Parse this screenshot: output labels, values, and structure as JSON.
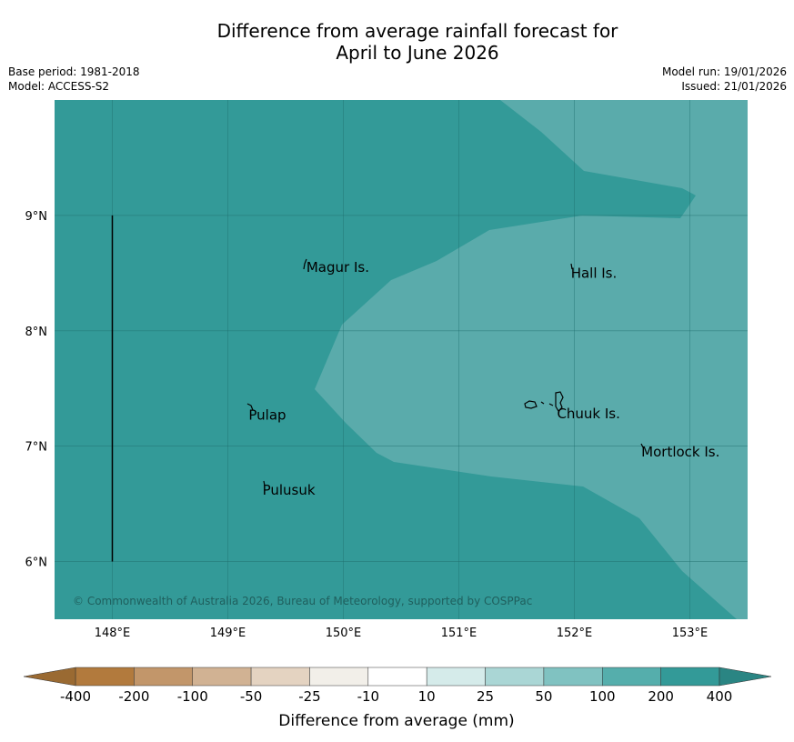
{
  "title": {
    "line1": "Difference from average rainfall forecast for",
    "line2": "April to June 2026"
  },
  "meta": {
    "base_period": "Base period: 1981-2018",
    "model": "Model: ACCESS-S2",
    "model_run": "Model run: 19/01/2026",
    "issued": "Issued: 21/01/2026"
  },
  "map": {
    "lon_range": [
      147.5,
      153.5
    ],
    "lat_range": [
      5.5,
      10.0
    ],
    "lon_ticks": [
      {
        "value": 148,
        "label": "148°E"
      },
      {
        "value": 149,
        "label": "149°E"
      },
      {
        "value": 150,
        "label": "150°E"
      },
      {
        "value": 151,
        "label": "151°E"
      },
      {
        "value": 152,
        "label": "152°E"
      },
      {
        "value": 153,
        "label": "153°E"
      }
    ],
    "lat_ticks": [
      {
        "value": 6,
        "label": "6°N"
      },
      {
        "value": 7,
        "label": "7°N"
      },
      {
        "value": 8,
        "label": "8°N"
      },
      {
        "value": 9,
        "label": "9°N"
      }
    ],
    "fill_colors": {
      "band_200_400": "#339a98",
      "band_100_200": "#5aabab",
      "gridline": "#1f6f6d",
      "land": "#000000"
    },
    "places": [
      {
        "name": "Magur Is.",
        "lon": 149.68,
        "lat": 8.55
      },
      {
        "name": "Hall Is.",
        "lon": 151.97,
        "lat": 8.5
      },
      {
        "name": "Pulap",
        "lon": 149.18,
        "lat": 7.27
      },
      {
        "name": "Chuuk Is.",
        "lon": 151.85,
        "lat": 7.28
      },
      {
        "name": "Mortlock Is.",
        "lon": 152.58,
        "lat": 6.95
      },
      {
        "name": "Pulusuk",
        "lon": 149.3,
        "lat": 6.62
      }
    ],
    "boundary_line": {
      "lon": 148.0,
      "lat_from": 6.0,
      "lat_to": 9.0
    },
    "credit": "© Commonwealth of Australia 2026, Bureau of Meteorology, supported by COSPPac"
  },
  "colorbar": {
    "title": "Difference from average (mm)",
    "ticks": [
      "-400",
      "-200",
      "-100",
      "-50",
      "-25",
      "-10",
      "10",
      "25",
      "50",
      "100",
      "200",
      "400"
    ],
    "colors": [
      "#b27a3d",
      "#c2966a",
      "#d1b293",
      "#e4d3c1",
      "#f2efe9",
      "#ffffff",
      "#d5ebea",
      "#aad6d5",
      "#80c2c1",
      "#55aeac",
      "#339a98"
    ],
    "under_color": "#9a6a32",
    "over_color": "#2a8583"
  }
}
